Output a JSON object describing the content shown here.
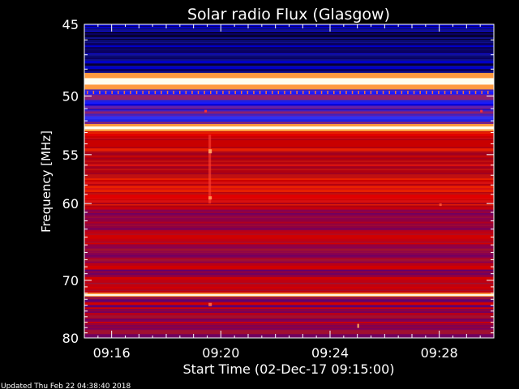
{
  "chart_data": {
    "type": "heatmap",
    "title": "Solar radio Flux (Glasgow)",
    "xlabel": "Start Time (02-Dec-17 09:15:00)",
    "ylabel": "Frequency [MHz]",
    "x_ticks": [
      "09:16",
      "09:20",
      "09:24",
      "09:28"
    ],
    "x_tick_minutes": [
      16,
      20,
      24,
      28
    ],
    "xlim_minutes": [
      15,
      30
    ],
    "y_ticks": [
      45,
      50,
      55,
      60,
      70,
      80
    ],
    "ylim": [
      45,
      80
    ],
    "y_scale": "reciprocal",
    "grid": false,
    "bands": [
      {
        "from": 45,
        "to": 48.3,
        "level": "low"
      },
      {
        "from": 48.3,
        "to": 49.5,
        "level": "very-high"
      },
      {
        "from": 49.5,
        "to": 52.3,
        "level": "low-medium"
      },
      {
        "from": 52.3,
        "to": 52.9,
        "level": "very-high"
      },
      {
        "from": 52.9,
        "to": 60.5,
        "level": "high"
      },
      {
        "from": 60.5,
        "to": 69.5,
        "level": "medium"
      },
      {
        "from": 69.5,
        "to": 72,
        "level": "medium-high"
      },
      {
        "from": 72,
        "to": 72.6,
        "level": "very-high"
      },
      {
        "from": 72.6,
        "to": 80,
        "level": "medium"
      }
    ]
  },
  "footer": {
    "updated": "Updated Thu Feb 22 04:38:40 2018"
  }
}
